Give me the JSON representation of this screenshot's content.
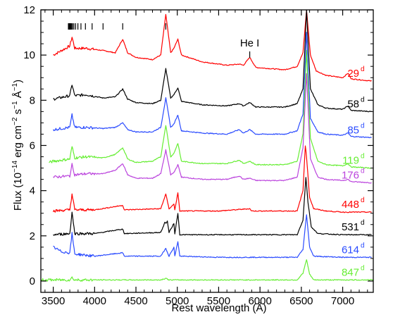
{
  "chart_data": {
    "type": "line",
    "xlabel": "Rest wavelength (Å)",
    "ylabel_parts": {
      "pre": "Flux (10",
      "exp1": "−14",
      "mid": " erg cm",
      "exp2": "−2",
      "mid2": " s",
      "exp3": "−1",
      "mid3": " Å",
      "exp4": "−1",
      "post": ")"
    },
    "xlim": [
      3350,
      7370
    ],
    "ylim": [
      -0.5,
      12
    ],
    "xticks": [
      3500,
      4000,
      4500,
      5000,
      5500,
      6000,
      6500,
      7000
    ],
    "yticks": [
      0,
      2,
      4,
      6,
      8,
      10,
      12
    ],
    "annotation": "He I",
    "annotation_x": 5876,
    "balmer_tick_x": [
      6563,
      4861,
      4340,
      4102,
      3970,
      3889,
      3835,
      3798,
      3771,
      3750,
      3734,
      3722,
      3712,
      3704,
      3697,
      3692,
      3687,
      3683
    ],
    "series": [
      {
        "name": "29",
        "sup": "d",
        "color": "#ff0000",
        "x": [
          3500,
          3700,
          3727,
          3760,
          3900,
          4102,
          4250,
          4340,
          4400,
          4500,
          4700,
          4800,
          4861,
          4920,
          4959,
          5007,
          5050,
          5300,
          5600,
          5750,
          5800,
          5876,
          5950,
          6300,
          6450,
          6520,
          6563,
          6610,
          6680,
          6800,
          7000,
          7065,
          7100,
          7350
        ],
        "y": [
          10.0,
          10.4,
          10.8,
          10.3,
          10.3,
          10.2,
          10.1,
          10.7,
          10.1,
          9.9,
          9.8,
          10.0,
          11.8,
          10.1,
          10.3,
          10.7,
          10.0,
          9.7,
          9.55,
          9.6,
          9.55,
          9.9,
          9.45,
          9.35,
          9.5,
          10.1,
          12.0,
          10.0,
          9.3,
          9.1,
          9.0,
          9.2,
          8.95,
          8.85
        ]
      },
      {
        "name": "58",
        "sup": "d",
        "color": "#000000",
        "x": [
          3500,
          3700,
          3727,
          3760,
          3900,
          4102,
          4250,
          4340,
          4400,
          4500,
          4700,
          4800,
          4861,
          4920,
          4959,
          5007,
          5050,
          5300,
          5600,
          5750,
          5800,
          5876,
          5950,
          6300,
          6450,
          6520,
          6563,
          6610,
          6700,
          6800,
          7000,
          7065,
          7100,
          7350
        ],
        "y": [
          8.05,
          8.2,
          8.7,
          8.2,
          8.25,
          8.1,
          8.15,
          8.5,
          8.05,
          7.9,
          7.85,
          8.0,
          9.4,
          8.1,
          8.25,
          8.55,
          7.95,
          7.8,
          7.75,
          7.85,
          7.75,
          7.9,
          7.7,
          7.7,
          7.85,
          8.5,
          12.0,
          8.5,
          7.8,
          7.65,
          7.6,
          7.75,
          7.55,
          7.5
        ]
      },
      {
        "name": "85",
        "sup": "d",
        "color": "#2a4bff",
        "x": [
          3500,
          3700,
          3727,
          3760,
          3900,
          4102,
          4250,
          4340,
          4400,
          4500,
          4700,
          4800,
          4861,
          4920,
          4959,
          5007,
          5050,
          5300,
          5600,
          5750,
          5800,
          5876,
          5950,
          6300,
          6450,
          6520,
          6563,
          6610,
          6700,
          6800,
          7000,
          7065,
          7100,
          7350
        ],
        "y": [
          6.7,
          6.8,
          7.35,
          6.8,
          6.8,
          6.75,
          6.8,
          7.0,
          6.7,
          6.6,
          6.6,
          6.8,
          8.1,
          6.8,
          6.95,
          7.35,
          6.65,
          6.55,
          6.5,
          6.7,
          6.55,
          6.7,
          6.5,
          6.5,
          6.65,
          7.4,
          11.0,
          7.2,
          6.6,
          6.5,
          6.45,
          6.55,
          6.4,
          6.35
        ]
      },
      {
        "name": "119",
        "sup": "d",
        "color": "#66ee33",
        "x": [
          3450,
          3500,
          3700,
          3727,
          3760,
          3900,
          4102,
          4250,
          4340,
          4400,
          4500,
          4700,
          4800,
          4861,
          4920,
          4959,
          5007,
          5050,
          5300,
          5600,
          5750,
          5800,
          5876,
          5950,
          6300,
          6450,
          6520,
          6563,
          6610,
          6700,
          6800,
          7000,
          7065,
          7100,
          7350
        ],
        "y": [
          5.25,
          5.3,
          5.4,
          5.95,
          5.45,
          5.5,
          5.45,
          5.6,
          5.9,
          5.4,
          5.25,
          5.3,
          5.5,
          6.9,
          5.5,
          5.65,
          6.1,
          5.3,
          5.2,
          5.2,
          5.35,
          5.2,
          5.3,
          5.15,
          5.15,
          5.3,
          6.5,
          10.2,
          6.3,
          5.3,
          5.15,
          5.1,
          5.2,
          5.05,
          5.0
        ]
      },
      {
        "name": "176",
        "sup": "d",
        "color": "#bb44dd",
        "x": [
          3500,
          3700,
          3727,
          3760,
          3900,
          4102,
          4250,
          4340,
          4400,
          4500,
          4700,
          4800,
          4861,
          4920,
          4959,
          5007,
          5050,
          5300,
          5600,
          5750,
          5800,
          5876,
          5950,
          6300,
          6450,
          6520,
          6563,
          6610,
          6700,
          6800,
          7000,
          7065,
          7100,
          7350
        ],
        "y": [
          4.6,
          4.65,
          5.15,
          4.7,
          4.75,
          4.75,
          4.9,
          5.2,
          4.7,
          4.55,
          4.55,
          4.75,
          5.8,
          4.7,
          4.8,
          5.15,
          4.6,
          4.5,
          4.5,
          4.65,
          4.5,
          4.55,
          4.45,
          4.45,
          4.6,
          5.9,
          9.2,
          5.4,
          4.6,
          4.5,
          4.45,
          4.5,
          4.4,
          4.35
        ]
      },
      {
        "name": "448",
        "sup": "d",
        "color": "#ff0000",
        "x": [
          3500,
          3700,
          3727,
          3760,
          4000,
          4340,
          4360,
          4800,
          4861,
          4900,
          4959,
          4970,
          5007,
          5030,
          5500,
          5876,
          5900,
          6450,
          6520,
          6548,
          6563,
          6600,
          6650,
          6800,
          7000,
          7350
        ],
        "y": [
          3.1,
          3.15,
          3.85,
          3.15,
          3.15,
          3.35,
          3.15,
          3.2,
          3.85,
          3.2,
          3.4,
          3.15,
          3.9,
          3.1,
          3.1,
          3.2,
          3.1,
          3.1,
          4.0,
          6.0,
          5.5,
          3.7,
          3.2,
          3.1,
          3.05,
          3.05
        ]
      },
      {
        "name": "531",
        "sup": "d",
        "color": "#000000",
        "x": [
          3500,
          3700,
          3727,
          3760,
          4000,
          4340,
          4360,
          4800,
          4850,
          4861,
          4880,
          4900,
          4959,
          4970,
          5007,
          5030,
          5500,
          6450,
          6520,
          6555,
          6580,
          6620,
          6700,
          7000,
          7350
        ],
        "y": [
          2.05,
          2.1,
          3.05,
          2.1,
          2.1,
          2.3,
          2.1,
          2.15,
          2.6,
          2.55,
          2.65,
          2.15,
          2.55,
          2.1,
          3.0,
          2.05,
          2.05,
          2.05,
          2.7,
          4.6,
          3.5,
          2.4,
          2.1,
          2.05,
          2.05
        ]
      },
      {
        "name": "614",
        "sup": "d",
        "color": "#2a4bff",
        "x": [
          3500,
          3600,
          3700,
          3727,
          3760,
          4000,
          4340,
          4360,
          4800,
          4861,
          4900,
          4959,
          4970,
          5007,
          5030,
          5500,
          6450,
          6520,
          6563,
          6600,
          6650,
          7000,
          7350
        ],
        "y": [
          1.5,
          1.3,
          1.25,
          2.1,
          1.2,
          1.1,
          1.25,
          1.1,
          1.1,
          1.45,
          1.1,
          1.5,
          1.1,
          1.75,
          1.1,
          1.05,
          1.05,
          1.4,
          2.95,
          1.5,
          1.1,
          1.05,
          1.05
        ]
      },
      {
        "name": "847",
        "sup": "d",
        "color": "#66ee33",
        "x": [
          3350,
          3700,
          3727,
          3760,
          4800,
          4861,
          4900,
          6450,
          6520,
          6563,
          6600,
          6650,
          7370
        ],
        "y": [
          0.05,
          0.05,
          0.15,
          0.05,
          0.05,
          0.12,
          0.05,
          0.05,
          0.35,
          0.95,
          0.3,
          0.05,
          0.05
        ]
      }
    ]
  }
}
